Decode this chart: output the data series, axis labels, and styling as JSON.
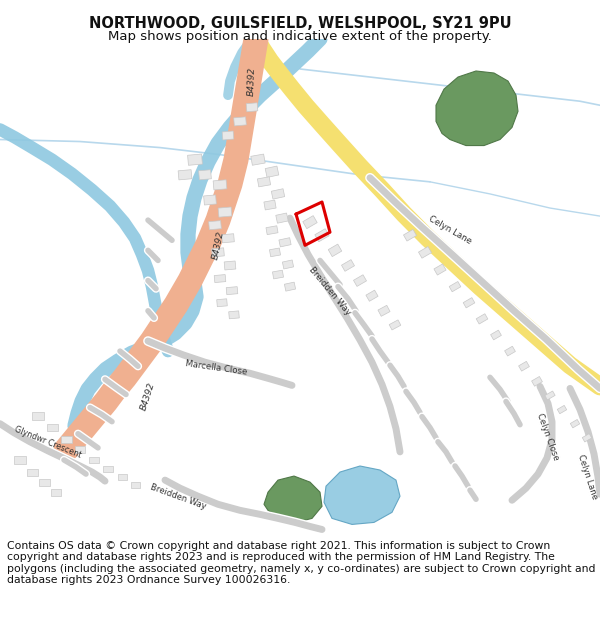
{
  "title": "NORTHWOOD, GUILSFIELD, WELSHPOOL, SY21 9PU",
  "subtitle": "Map shows position and indicative extent of the property.",
  "footer": "Contains OS data © Crown copyright and database right 2021. This information is subject to Crown copyright and database rights 2023 and is reproduced with the permission of\nHM Land Registry. The polygons (including the associated geometry, namely x, y co-ordinates) are subject to Crown copyright and database rights 2023 Ordnance Survey\n100026316.",
  "bg_color": "#ffffff",
  "map_bg": "#ffffff",
  "title_fontsize": 10.5,
  "subtitle_fontsize": 9.5,
  "footer_fontsize": 7.8,
  "road_main_color": "#f0b090",
  "road_yellow_color": "#f5e070",
  "road_minor_color": "#cccccc",
  "road_minor_edge": "#bbbbbb",
  "river_color": "#8ec8e0",
  "river_thin_color": "#b0d8ee",
  "building_face": "#e8e8e8",
  "building_edge": "#c8c8c8",
  "green_color": "#6a9960",
  "water_color": "#8ec8e0",
  "property_color": "#dd0000",
  "label_color": "#333333"
}
